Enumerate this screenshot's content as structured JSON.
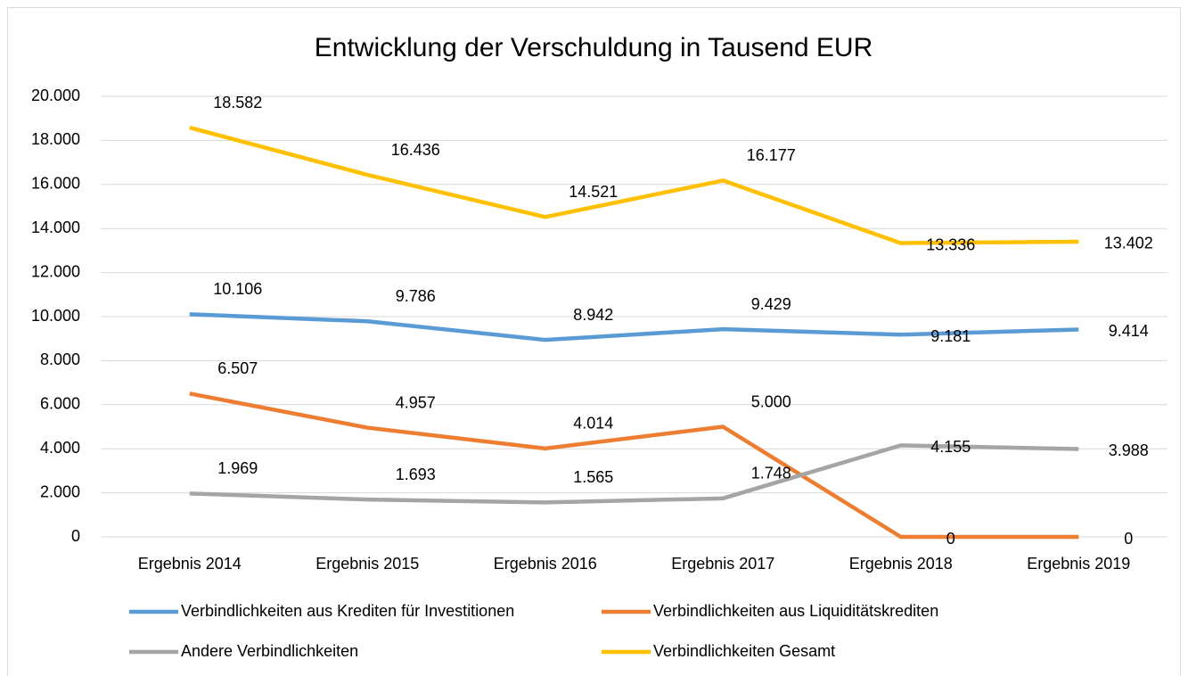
{
  "chart_data": {
    "type": "line",
    "title": "Entwicklung der Verschuldung in Tausend EUR",
    "categories": [
      "Ergebnis 2014",
      "Ergebnis 2015",
      "Ergebnis 2016",
      "Ergebnis 2017",
      "Ergebnis 2018",
      "Ergebnis 2019"
    ],
    "series": [
      {
        "name": "Verbindlichkeiten aus Krediten für Investitionen",
        "color": "#5b9bd5",
        "values": [
          10106,
          9786,
          8942,
          9429,
          9181,
          9414
        ],
        "value_labels": [
          "10.106",
          "9.786",
          "8.942",
          "9.429",
          "9.181",
          "9.414"
        ]
      },
      {
        "name": "Verbindlichkeiten aus Liquiditätskrediten",
        "color": "#ed7d31",
        "values": [
          6507,
          4957,
          4014,
          5000,
          0,
          0
        ],
        "value_labels": [
          "6.507",
          "4.957",
          "4.014",
          "5.000",
          "0",
          "0"
        ]
      },
      {
        "name": "Andere Verbindlichkeiten",
        "color": "#a5a5a5",
        "values": [
          1969,
          1693,
          1565,
          1748,
          4155,
          3988
        ],
        "value_labels": [
          "1.969",
          "1.693",
          "1.565",
          "1.748",
          "4.155",
          "3.988"
        ]
      },
      {
        "name": "Verbindlichkeiten Gesamt",
        "color": "#ffc000",
        "values": [
          18582,
          16436,
          14521,
          16177,
          13336,
          13402
        ],
        "value_labels": [
          "18.582",
          "16.436",
          "14.521",
          "16.177",
          "13.336",
          "13.402"
        ]
      }
    ],
    "ylim": [
      0,
      20000
    ],
    "yticks": [
      0,
      {
        "value": 2000,
        "label": "2.000"
      },
      {
        "value": 4000,
        "label": "4.000"
      },
      {
        "value": 6000,
        "label": "6.000"
      },
      {
        "value": 8000,
        "label": "8.000"
      },
      {
        "value": 10000,
        "label": "10.000"
      },
      {
        "value": 12000,
        "label": "12.000"
      },
      {
        "value": 14000,
        "label": "14.000"
      },
      {
        "value": 16000,
        "label": "16.000"
      },
      {
        "value": 18000,
        "label": "18.000"
      },
      {
        "value": 20000,
        "label": "20.000"
      }
    ],
    "grid": true,
    "legend": "bottom"
  }
}
